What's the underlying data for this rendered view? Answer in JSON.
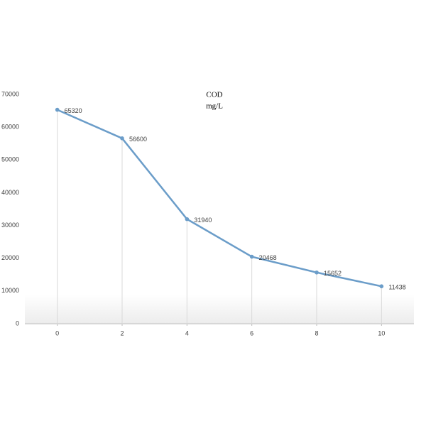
{
  "chart_data": {
    "type": "line",
    "title": "COD",
    "subtitle": "mg/L",
    "x": [
      0,
      2,
      4,
      6,
      8,
      10
    ],
    "series": [
      {
        "name": "COD",
        "color": "#6b9dc9",
        "values": [
          65320,
          56600,
          31940,
          20468,
          15652,
          11438
        ]
      }
    ],
    "xlim": [
      -1,
      11
    ],
    "xticks": [
      0,
      2,
      4,
      6,
      8,
      10
    ],
    "ylim": [
      0,
      70000
    ],
    "yticks": [
      0,
      10000,
      20000,
      30000,
      40000,
      50000,
      60000,
      70000
    ],
    "data_labels": true,
    "drop_lines": true,
    "grid": false
  }
}
